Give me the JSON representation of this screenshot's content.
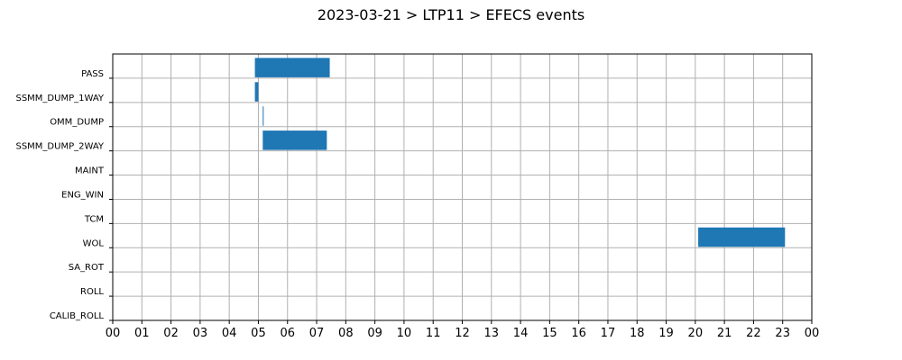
{
  "chart_data": {
    "type": "gantt",
    "title": "2023-03-21 > LTP11 > EFECS events",
    "x_unit": "hour",
    "xlim": [
      0,
      24
    ],
    "x_tick_labels": [
      "00",
      "01",
      "02",
      "03",
      "04",
      "05",
      "06",
      "07",
      "08",
      "09",
      "10",
      "11",
      "12",
      "13",
      "14",
      "15",
      "16",
      "17",
      "18",
      "19",
      "20",
      "21",
      "22",
      "23",
      "00"
    ],
    "categories": [
      "PASS",
      "SSMM_DUMP_1WAY",
      "OMM_DUMP",
      "SSMM_DUMP_2WAY",
      "MAINT",
      "ENG_WIN",
      "TCM",
      "WOL",
      "SA_ROT",
      "ROLL",
      "CALIB_ROLL"
    ],
    "events": [
      {
        "category": "PASS",
        "start": 4.88,
        "end": 7.45
      },
      {
        "category": "SSMM_DUMP_1WAY",
        "start": 4.88,
        "end": 5.0
      },
      {
        "category": "OMM_DUMP",
        "start": 5.15,
        "end": 5.18
      },
      {
        "category": "SSMM_DUMP_2WAY",
        "start": 5.15,
        "end": 7.35
      },
      {
        "category": "WOL",
        "start": 20.1,
        "end": 23.08
      }
    ],
    "bar_color": "#1f77b4",
    "grid": true
  }
}
